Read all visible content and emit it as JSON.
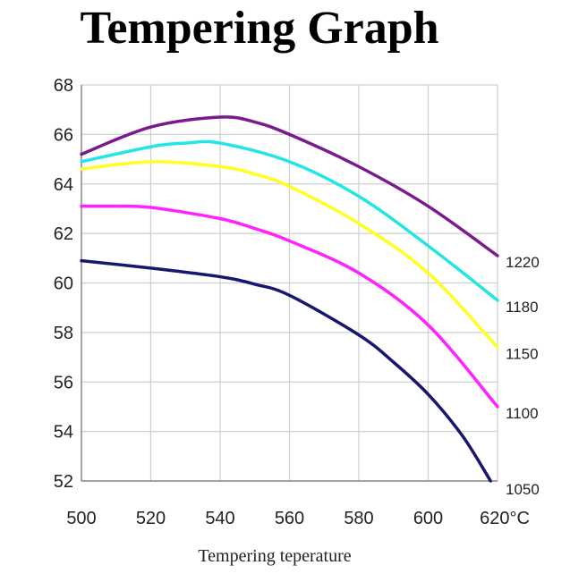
{
  "chart_data": {
    "type": "line",
    "title": "Tempering Graph",
    "xlabel": "Tempering teperature",
    "ylabel": "",
    "xlim": [
      500,
      620
    ],
    "ylim": [
      52,
      68
    ],
    "x_ticks": [
      "500",
      "520",
      "540",
      "560",
      "580",
      "600",
      "620°C"
    ],
    "y_ticks": [
      "52",
      "54",
      "56",
      "58",
      "60",
      "62",
      "64",
      "66",
      "68"
    ],
    "grid": true,
    "series": [
      {
        "name": "1220",
        "color": "#7a1a8c",
        "x": [
          500,
          520,
          540,
          550,
          560,
          580,
          600,
          620
        ],
        "y": [
          65.2,
          66.3,
          66.7,
          66.5,
          66.0,
          64.7,
          63.1,
          61.1
        ]
      },
      {
        "name": "1180",
        "color": "#22e6e6",
        "x": [
          500,
          520,
          530,
          540,
          560,
          580,
          600,
          620
        ],
        "y": [
          64.9,
          65.5,
          65.65,
          65.65,
          64.9,
          63.5,
          61.5,
          59.3
        ]
      },
      {
        "name": "1150",
        "color": "#ffff22",
        "x": [
          500,
          520,
          540,
          550,
          560,
          580,
          600,
          620
        ],
        "y": [
          64.6,
          64.9,
          64.7,
          64.4,
          63.9,
          62.4,
          60.4,
          57.4
        ]
      },
      {
        "name": "1100",
        "color": "#ff22ff",
        "x": [
          500,
          510,
          520,
          540,
          550,
          560,
          580,
          600,
          620
        ],
        "y": [
          63.1,
          63.1,
          63.05,
          62.6,
          62.2,
          61.7,
          60.4,
          58.3,
          55.0
        ]
      },
      {
        "name": "1050",
        "color": "#17176e",
        "x": [
          500,
          520,
          540,
          550,
          560,
          580,
          590,
          600,
          610,
          618
        ],
        "y": [
          60.9,
          60.6,
          60.25,
          59.95,
          59.5,
          57.9,
          56.8,
          55.5,
          53.8,
          52.0
        ]
      }
    ]
  }
}
